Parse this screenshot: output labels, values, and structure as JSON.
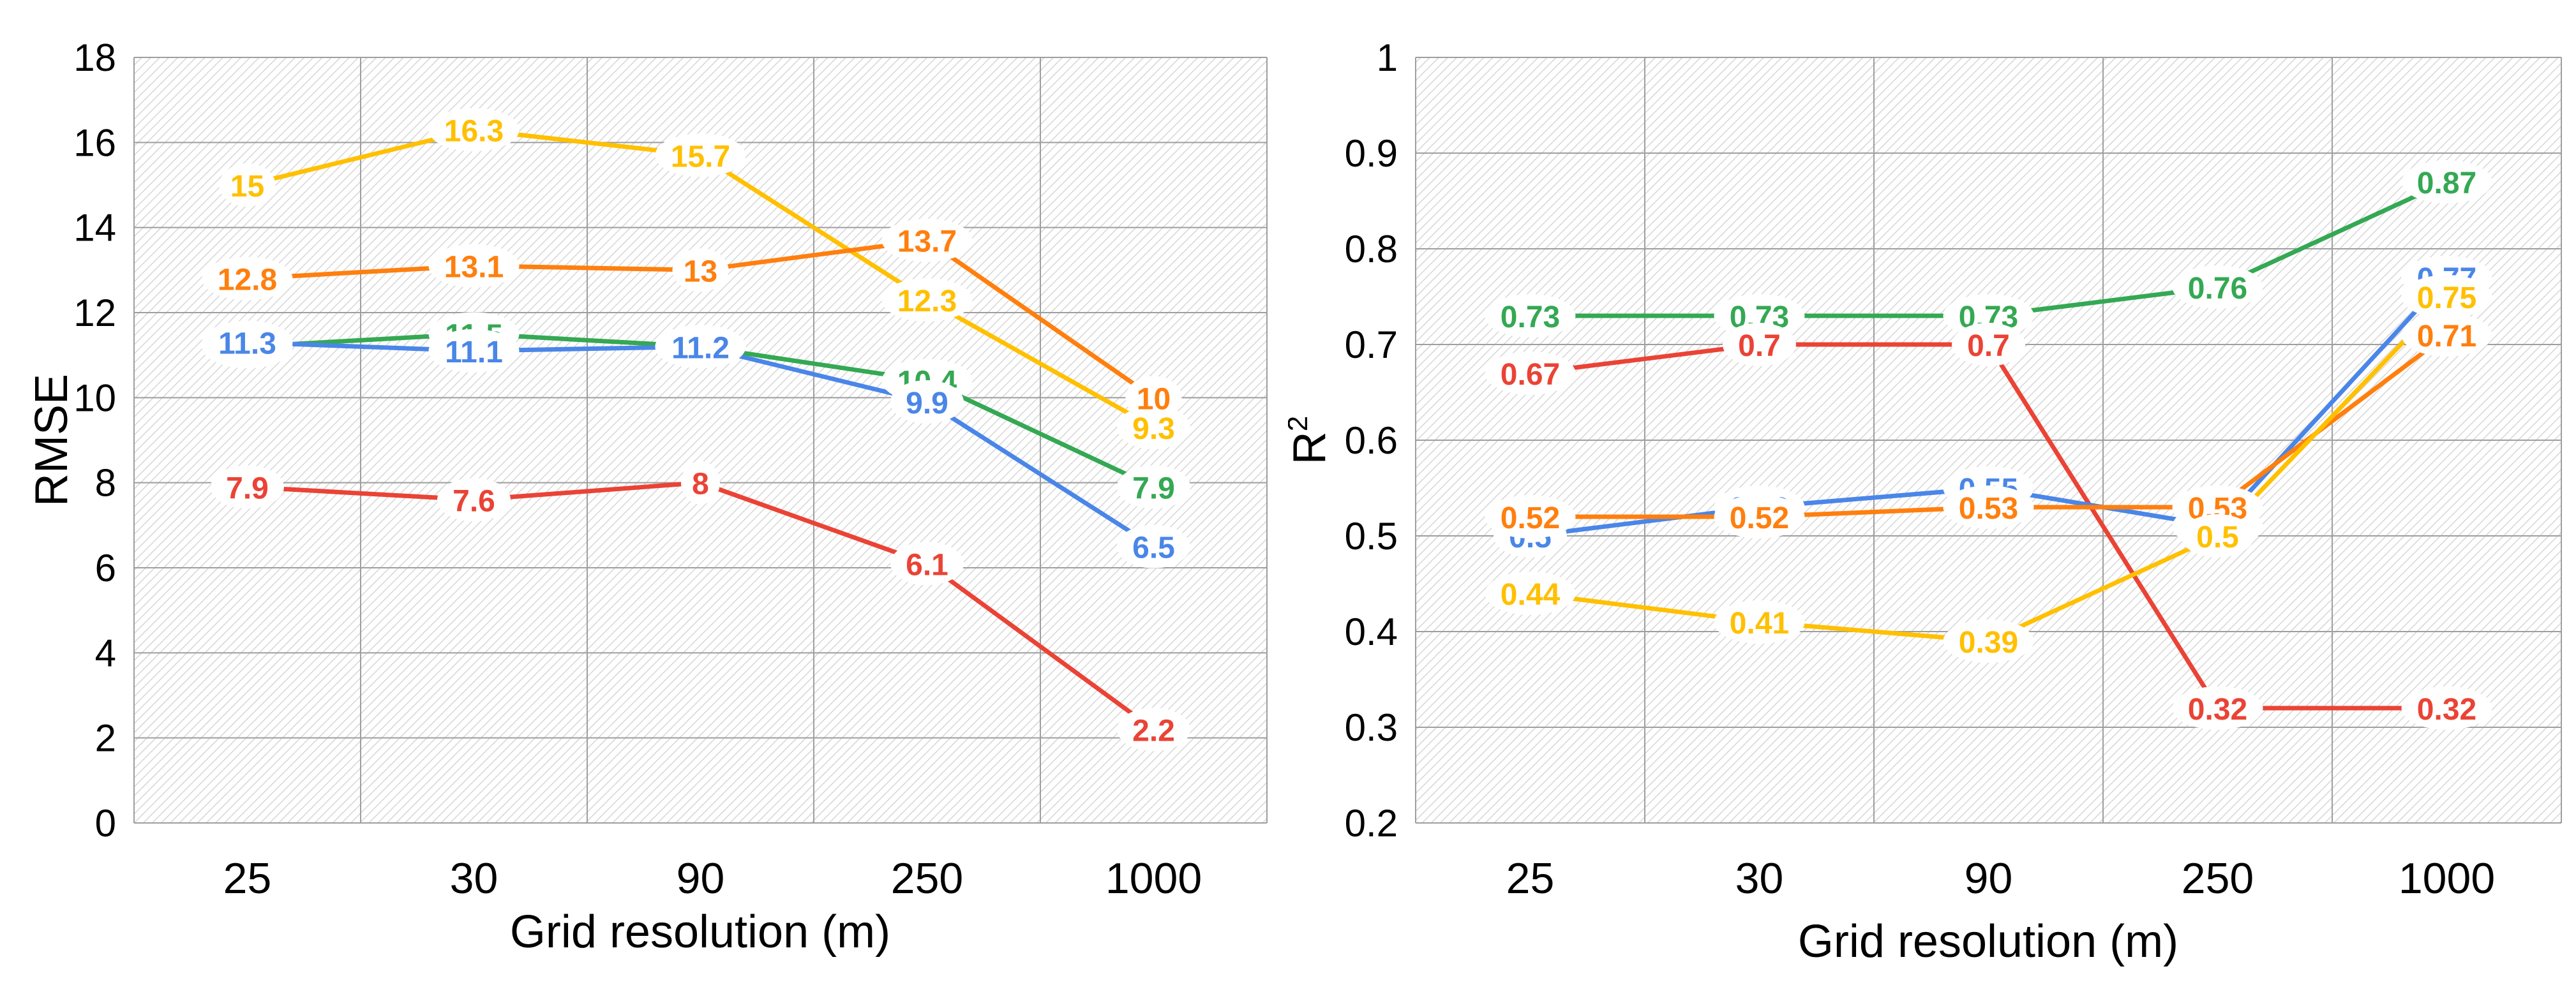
{
  "chart_data": [
    {
      "type": "line",
      "categories": [
        "25",
        "30",
        "90",
        "250",
        "1000"
      ],
      "xlabel": "Grid resolution (m)",
      "ylabel": "RMSE",
      "ylim": [
        0,
        18
      ],
      "yticks": [
        0,
        2,
        4,
        6,
        8,
        10,
        12,
        14,
        16,
        18
      ],
      "ytick_labels": [
        "0",
        "2",
        "4",
        "6",
        "8",
        "10",
        "12",
        "14",
        "16",
        "18"
      ],
      "grid": true,
      "series": [
        {
          "color": "#FFC000",
          "values": [
            15,
            16.3,
            15.7,
            12.3,
            9.3
          ],
          "labels": [
            "15",
            "16.3",
            "15.7",
            "12.3",
            "9.3"
          ]
        },
        {
          "color": "#FF7F0E",
          "values": [
            12.8,
            13.1,
            13,
            13.7,
            10
          ],
          "labels": [
            "12.8",
            "13.1",
            "13",
            "13.7",
            "10"
          ]
        },
        {
          "color": "#34A853",
          "values": [
            11.2,
            11.5,
            11.2,
            10.4,
            7.9
          ],
          "labels": [
            "11.2",
            "11.5",
            "11.2",
            "10.4",
            "7.9"
          ]
        },
        {
          "color": "#4A86E8",
          "values": [
            11.3,
            11.1,
            11.2,
            9.9,
            6.5
          ],
          "labels": [
            "11.3",
            "11.1",
            "11.2",
            "9.9",
            "6.5"
          ]
        },
        {
          "color": "#EA4335",
          "values": [
            7.9,
            7.6,
            8,
            6.1,
            2.2
          ],
          "labels": [
            "7.9",
            "7.6",
            "8",
            "6.1",
            "2.2"
          ]
        }
      ]
    },
    {
      "type": "line",
      "categories": [
        "25",
        "30",
        "90",
        "250",
        "1000"
      ],
      "xlabel": "Grid resolution (m)",
      "ylabel_base": "R",
      "ylabel_sup": "2",
      "ylim": [
        0.2,
        1
      ],
      "yticks": [
        0.2,
        0.3,
        0.4,
        0.5,
        0.6,
        0.7,
        0.8,
        0.9,
        1
      ],
      "ytick_labels": [
        "0.2",
        "0.3",
        "0.4",
        "0.5",
        "0.6",
        "0.7",
        "0.8",
        "0.9",
        "1"
      ],
      "grid": true,
      "series": [
        {
          "color": "#34A853",
          "values": [
            0.73,
            0.73,
            0.73,
            0.76,
            0.87
          ],
          "labels": [
            "0.73",
            "0.73",
            "0.73",
            "0.76",
            "0.87"
          ]
        },
        {
          "color": "#EA4335",
          "values": [
            0.67,
            0.7,
            0.7,
            0.32,
            0.32
          ],
          "labels": [
            "0.67",
            "0.7",
            "0.7",
            "0.32",
            "0.32"
          ]
        },
        {
          "color": "#4A86E8",
          "values": [
            0.5,
            0.53,
            0.55,
            0.51,
            0.77
          ],
          "labels": [
            "0.5",
            "0.53",
            "0.55",
            "0.51",
            "0.77"
          ]
        },
        {
          "color": "#FF7F0E",
          "values": [
            0.52,
            0.52,
            0.53,
            0.53,
            0.71
          ],
          "labels": [
            "0.52",
            "0.52",
            "0.53",
            "0.53",
            "0.71"
          ]
        },
        {
          "color": "#FFC000",
          "values": [
            0.44,
            0.41,
            0.39,
            0.5,
            0.75
          ],
          "labels": [
            "0.44",
            "0.41",
            "0.39",
            "0.5",
            "0.75"
          ]
        }
      ]
    }
  ]
}
